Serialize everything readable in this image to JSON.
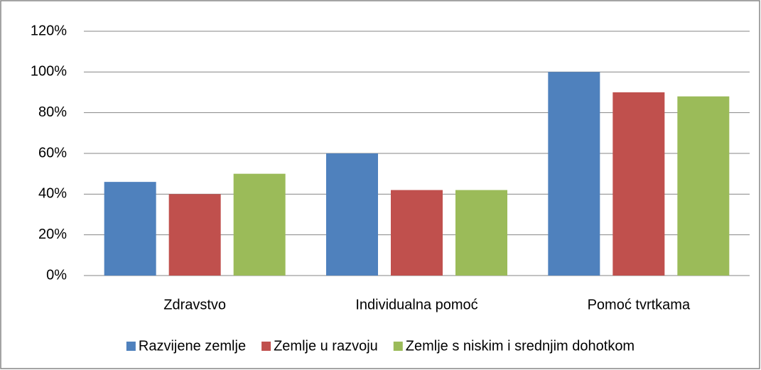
{
  "chart_data": {
    "type": "bar",
    "categories": [
      "Zdravstvo",
      "Individualna pomoć",
      "Pomoć tvrtkama"
    ],
    "series": [
      {
        "name": "Razvijene zemlje",
        "color": "#4f81bd",
        "values": [
          46,
          60,
          100
        ]
      },
      {
        "name": "Zemlje u razvoju",
        "color": "#c0504d",
        "values": [
          40,
          42,
          90
        ]
      },
      {
        "name": "Zemlje s niskim i srednjim dohotkom",
        "color": "#9bbb59",
        "values": [
          50,
          42,
          88
        ]
      }
    ],
    "ylim": [
      0,
      120
    ],
    "yticks": [
      {
        "value": 0,
        "label": "0%"
      },
      {
        "value": 20,
        "label": "20%"
      },
      {
        "value": 40,
        "label": "40%"
      },
      {
        "value": 60,
        "label": "60%"
      },
      {
        "value": 80,
        "label": "80%"
      },
      {
        "value": 100,
        "label": "100%"
      },
      {
        "value": 120,
        "label": "120%"
      }
    ],
    "grid": true,
    "legend": "bottom"
  }
}
